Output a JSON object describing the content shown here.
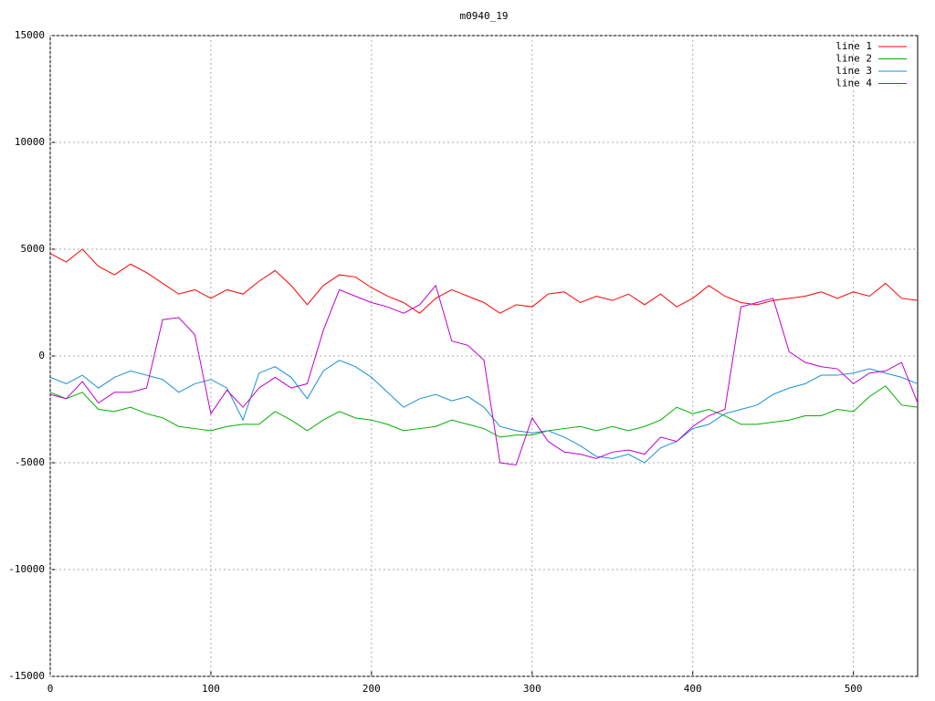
{
  "chart_data": {
    "type": "line",
    "title": "m0940_19",
    "x": [
      0,
      10,
      20,
      30,
      40,
      50,
      60,
      70,
      80,
      90,
      100,
      110,
      120,
      130,
      140,
      150,
      160,
      170,
      180,
      190,
      200,
      210,
      220,
      230,
      240,
      250,
      260,
      270,
      280,
      290,
      300,
      310,
      320,
      330,
      340,
      350,
      360,
      370,
      380,
      390,
      400,
      410,
      420,
      430,
      440,
      450,
      460,
      470,
      480,
      490,
      500,
      510,
      520,
      530,
      540
    ],
    "series": [
      {
        "name": "line 1",
        "color": "#ff0000",
        "values": [
          4800,
          4400,
          5000,
          4200,
          3800,
          4300,
          3900,
          3400,
          2900,
          3100,
          2700,
          3100,
          2900,
          3500,
          4000,
          3300,
          2400,
          3300,
          3800,
          3700,
          3200,
          2800,
          2500,
          2000,
          2700,
          3100,
          2800,
          2500,
          2000,
          2400,
          2300,
          2900,
          3000,
          2500,
          2800,
          2600,
          2900,
          2400,
          2900,
          2300,
          2700,
          3300,
          2800,
          2500,
          2400,
          2600,
          2700,
          2800,
          3000,
          2700,
          3000,
          2800,
          3400,
          2700,
          2600
        ]
      },
      {
        "name": "line 2",
        "color": "#00b000",
        "values": [
          -1700,
          -2000,
          -1700,
          -2500,
          -2600,
          -2400,
          -2700,
          -2900,
          -3300,
          -3400,
          -3500,
          -3300,
          -3200,
          -3200,
          -2600,
          -3000,
          -3500,
          -3000,
          -2600,
          -2900,
          -3000,
          -3200,
          -3500,
          -3400,
          -3300,
          -3000,
          -3200,
          -3400,
          -3800,
          -3700,
          -3700,
          -3500,
          -3400,
          -3300,
          -3500,
          -3300,
          -3500,
          -3300,
          -3000,
          -2400,
          -2700,
          -2500,
          -2800,
          -3200,
          -3200,
          -3100,
          -3000,
          -2800,
          -2800,
          -2500,
          -2600,
          -1900,
          -1400,
          -2300,
          -2400
        ]
      },
      {
        "name": "line 3",
        "color": "#1a8fd6",
        "values": [
          -1000,
          -1300,
          -900,
          -1500,
          -1000,
          -700,
          -900,
          -1100,
          -1700,
          -1300,
          -1100,
          -1500,
          -3000,
          -800,
          -500,
          -1000,
          -2000,
          -700,
          -200,
          -500,
          -1000,
          -1700,
          -2400,
          -2000,
          -1800,
          -2100,
          -1900,
          -2400,
          -3300,
          -3500,
          -3600,
          -3500,
          -3800,
          -4200,
          -4700,
          -4800,
          -4600,
          -5000,
          -4300,
          -4000,
          -3400,
          -3200,
          -2700,
          -2500,
          -2300,
          -1800,
          -1500,
          -1300,
          -900,
          -900,
          -800,
          -600,
          -800,
          -1000,
          -1300
        ]
      },
      {
        "name": "line 4",
        "color": "#c000d0",
        "values": [
          -1800,
          -2000,
          -1200,
          -2200,
          -1700,
          -1700,
          -1500,
          1700,
          1800,
          1000,
          -2700,
          -1600,
          -2400,
          -1500,
          -1000,
          -1500,
          -1300,
          1200,
          3100,
          2800,
          2500,
          2300,
          2000,
          2400,
          3300,
          700,
          500,
          -200,
          -5000,
          -5100,
          -2900,
          -4000,
          -4500,
          -4600,
          -4800,
          -4500,
          -4400,
          -4600,
          -3800,
          -4000,
          -3300,
          -2800,
          -2500,
          2300,
          2500,
          2700,
          200,
          -300,
          -500,
          -600,
          -1300,
          -800,
          -700,
          -300,
          -2200
        ]
      }
    ],
    "xlim": [
      0,
      540
    ],
    "ylim": [
      -15000,
      15000
    ],
    "xticks": [
      0,
      100,
      200,
      300,
      400,
      500
    ],
    "yticks": [
      -15000,
      -10000,
      -5000,
      0,
      5000,
      10000,
      15000
    ],
    "grid": true,
    "legend": "top-right"
  }
}
